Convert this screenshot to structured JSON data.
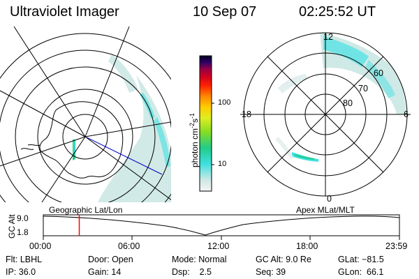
{
  "header": {
    "instrument": "Ultraviolet Imager",
    "date": "10 Sep 07",
    "time": "02:25:52 UT"
  },
  "colorbar": {
    "unit_label": "photon cm",
    "unit_sup1": "-2",
    "unit_mid": "s",
    "unit_sup2": "-1",
    "tick_labels": [
      "100",
      "10"
    ]
  },
  "polar_plot": {
    "mlt_labels": {
      "top": "12",
      "left": "18",
      "right": "6",
      "bottom": "0"
    },
    "lat_labels": [
      "60",
      "70",
      "80"
    ]
  },
  "timeline": {
    "left_label": "Geographic Lat/Lon",
    "right_label": "Apex MLat/MLT",
    "ylabel": "GC Alt",
    "y_ticks": [
      "9.0",
      "1.8"
    ],
    "x_ticks": [
      "00:00",
      "06:00",
      "12:00",
      "18:00",
      "23:59"
    ],
    "current_time_fraction": 0.101
  },
  "status": {
    "flt_label": "Flt:",
    "flt_value": "LBHL",
    "ip_label": "IP:",
    "ip_value": "36.0",
    "door_label": "Door:",
    "door_value": "Open",
    "gain_label": "Gain:",
    "gain_value": "14",
    "mode_label": "Mode:",
    "mode_value": "Normal",
    "dsp_label": "Dsp:",
    "dsp_value": "2.5",
    "gcalt_label": "GC Alt:",
    "gcalt_value": "9.0 Re",
    "seq_label": "Seq:",
    "seq_value": "39",
    "glat_label": "GLat:",
    "glat_value": "−81.5",
    "glon_label": "GLon:",
    "glon_value": "66.1"
  },
  "colors": {
    "aurora_light": "#cfe9e6",
    "aurora_cyan": "#3fe0e0",
    "aurora_green": "#22cc88",
    "marker": "#ff0000",
    "track": "#0000cc"
  }
}
